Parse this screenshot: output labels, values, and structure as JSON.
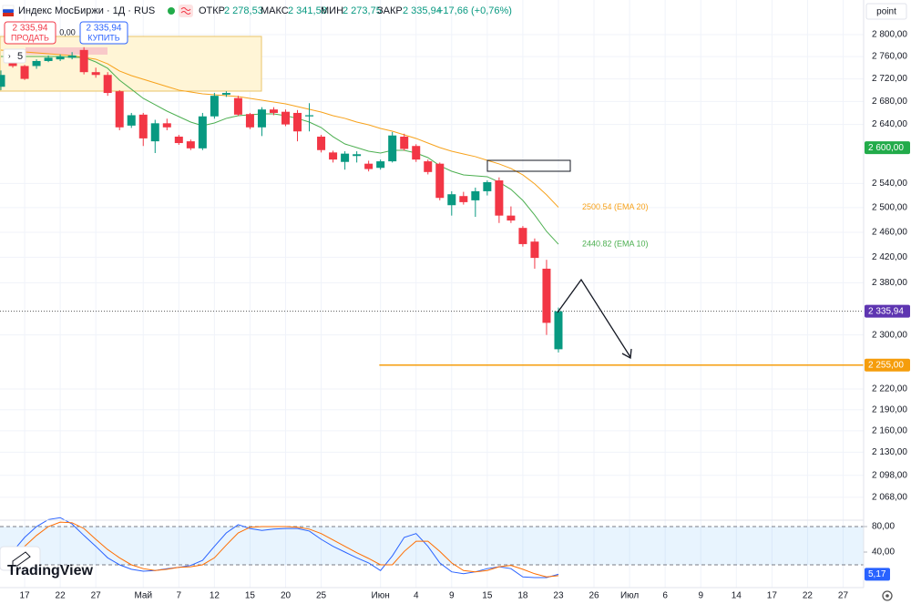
{
  "toolbar": {
    "symbol": "Индекс МосБиржи · 1Д · RUS",
    "open_label": "ОТКР",
    "open": "2 278,53",
    "high_label": "МАКС",
    "high": "2 341,58",
    "low_label": "МИН",
    "low": "2 273,75",
    "close_label": "ЗАКР",
    "close": "2 335,94",
    "change": "+17,66 (+0,76%)",
    "sell_price": "2 335,94",
    "sell": "ПРОДАТЬ",
    "spread": "0,00",
    "buy_price": "2 335,94",
    "buy": "КУПИТЬ",
    "indicator_count": "5",
    "scale_mode": "point",
    "logo": "TradingView"
  },
  "chart_data": [
    {
      "type": "candlestick",
      "log_scale": true,
      "grid": true,
      "up_color": "#089981",
      "down_color": "#f23645",
      "x": [
        0,
        1,
        2,
        3,
        4,
        5,
        6,
        7,
        8,
        9,
        10,
        11,
        12,
        13,
        14,
        15,
        16,
        17,
        18,
        19,
        20,
        21,
        22,
        23,
        24,
        25,
        26,
        27,
        28,
        29,
        30,
        31,
        32,
        33,
        34,
        35,
        36,
        37,
        38,
        39,
        40,
        41,
        42,
        43,
        44,
        45,
        46,
        47
      ],
      "open": [
        2706,
        2752,
        2743,
        2743,
        2752,
        2755,
        2758,
        2772,
        2732,
        2727,
        2698,
        2638,
        2657,
        2611,
        2642,
        2619,
        2611,
        2599,
        2654,
        2692,
        2686,
        2658,
        2635,
        2666,
        2662,
        2660,
        2654,
        2619,
        2592,
        2576,
        2586,
        2573,
        2566,
        2577,
        2619,
        2603,
        2577,
        2573,
        2504,
        2519,
        2512,
        2527,
        2545,
        2487,
        2467,
        2445,
        2402,
        2278.53
      ],
      "high": [
        2735,
        2755,
        2745,
        2755,
        2762,
        2764,
        2768,
        2777,
        2740,
        2732,
        2700,
        2660,
        2660,
        2648,
        2650,
        2622,
        2614,
        2660,
        2695,
        2698,
        2690,
        2660,
        2670,
        2670,
        2666,
        2665,
        2677,
        2622,
        2595,
        2594,
        2594,
        2578,
        2580,
        2627,
        2624,
        2606,
        2580,
        2575,
        2527,
        2526,
        2533,
        2545,
        2550,
        2502,
        2470,
        2450,
        2416,
        2341.58
      ],
      "low": [
        2700,
        2740,
        2718,
        2738,
        2750,
        2752,
        2755,
        2728,
        2722,
        2690,
        2630,
        2634,
        2603,
        2591,
        2630,
        2605,
        2596,
        2596,
        2650,
        2688,
        2655,
        2632,
        2620,
        2656,
        2637,
        2611,
        2628,
        2592,
        2575,
        2563,
        2575,
        2560,
        2563,
        2575,
        2595,
        2576,
        2555,
        2512,
        2487,
        2505,
        2485,
        2520,
        2475,
        2475,
        2437,
        2402,
        2300,
        2273.75
      ],
      "close": [
        2727,
        2743,
        2720,
        2752,
        2758,
        2760,
        2762,
        2732,
        2727,
        2695,
        2635,
        2656,
        2616,
        2642,
        2635,
        2608,
        2599,
        2654,
        2690,
        2695,
        2657,
        2635,
        2666,
        2660,
        2640,
        2628,
        2656,
        2596,
        2580,
        2590,
        2589,
        2564,
        2577,
        2621,
        2598,
        2580,
        2559,
        2516,
        2522,
        2509,
        2527,
        2542,
        2487,
        2479,
        2441,
        2419,
        2318.28,
        2335.94
      ],
      "close_labels": [
        null,
        null,
        null,
        null,
        null,
        null,
        null,
        null,
        null,
        null,
        null,
        null,
        null,
        null,
        null,
        null,
        null,
        null,
        null,
        null,
        null,
        null,
        null,
        null,
        null,
        null,
        null,
        null,
        null,
        null,
        null,
        null,
        null,
        null,
        null,
        null,
        null,
        null,
        null,
        null,
        null,
        null,
        null,
        null,
        null,
        null,
        null,
        "2 335,94"
      ],
      "last_price_color": "#5e35b1",
      "series": [
        {
          "color": "#f7a21b",
          "values": [
            2771.8,
            2770.1,
            2768.4,
            2766.8,
            2765.1,
            2763.5,
            2761.8,
            2758.5,
            2755.3,
            2747.0,
            2734.0,
            2725.8,
            2719.3,
            2712.8,
            2706.4,
            2700.0,
            2696.7,
            2693.5,
            2691.9,
            2690.3,
            2688.7,
            2685.5,
            2682.3,
            2679.1,
            2675.9,
            2671.1,
            2666.3,
            2661.5,
            2655.2,
            2650.5,
            2644.1,
            2639.4,
            2633.1,
            2628.3,
            2622.1,
            2615.9,
            2608.1,
            2600.3,
            2594.1,
            2589.5,
            2584.9,
            2578.7,
            2572.6,
            2564.9,
            2554.2,
            2539.1,
            2521.0,
            2500.54
          ],
          "value_labels": [
            null,
            null,
            null,
            null,
            null,
            null,
            null,
            null,
            null,
            null,
            null,
            null,
            null,
            null,
            null,
            null,
            null,
            null,
            null,
            null,
            null,
            null,
            null,
            null,
            null,
            null,
            null,
            null,
            null,
            null,
            null,
            null,
            null,
            null,
            null,
            null,
            null,
            null,
            null,
            null,
            null,
            null,
            null,
            null,
            null,
            null,
            null,
            "2500.54 (EMA 20)"
          ]
        },
        {
          "color": "#4caf50",
          "values": [
            2760.1,
            2760.1,
            2760.1,
            2760.1,
            2760.1,
            2760.1,
            2758.5,
            2758.5,
            2750.3,
            2738.9,
            2717.7,
            2701.6,
            2685.5,
            2674.3,
            2663.1,
            2653.6,
            2644.1,
            2637.8,
            2642.5,
            2650.5,
            2655.2,
            2656.8,
            2658.3,
            2658.3,
            2655.2,
            2650.5,
            2644.1,
            2634.6,
            2618.9,
            2606.5,
            2600.3,
            2594.1,
            2591.0,
            2595.7,
            2595.7,
            2591.0,
            2583.3,
            2569.5,
            2560.3,
            2554.2,
            2552.7,
            2551.2,
            2542.1,
            2530.0,
            2511.8,
            2487.9,
            2461.4,
            2440.82
          ],
          "value_labels": [
            null,
            null,
            null,
            null,
            null,
            null,
            null,
            null,
            null,
            null,
            null,
            null,
            null,
            null,
            null,
            null,
            null,
            null,
            null,
            null,
            null,
            null,
            null,
            null,
            null,
            null,
            null,
            null,
            null,
            null,
            null,
            null,
            null,
            null,
            null,
            null,
            null,
            null,
            null,
            null,
            null,
            null,
            null,
            null,
            null,
            null,
            null,
            "2440.82 (EMA 10)"
          ]
        }
      ],
      "levels": [
        {
          "value": 2600,
          "label": "2 600,00",
          "color": "#22ab4a",
          "line": false
        },
        {
          "value": 2255,
          "label": "2 255,00",
          "color": "#f59d0c",
          "line": true,
          "x_start": 31.9
        }
      ],
      "xlim": [
        -0.077,
        72.73
      ],
      "xticks": [
        {
          "value": 2,
          "label": "17"
        },
        {
          "value": 5,
          "label": "22"
        },
        {
          "value": 8,
          "label": "27"
        },
        {
          "value": 12,
          "label": "Май"
        },
        {
          "value": 15,
          "label": "7"
        },
        {
          "value": 18,
          "label": "12"
        },
        {
          "value": 21,
          "label": "15"
        },
        {
          "value": 24,
          "label": "20"
        },
        {
          "value": 27,
          "label": "25"
        },
        {
          "value": 32,
          "label": "Июн"
        },
        {
          "value": 35,
          "label": "4"
        },
        {
          "value": 38,
          "label": "9"
        },
        {
          "value": 41,
          "label": "15"
        },
        {
          "value": 44,
          "label": "18"
        },
        {
          "value": 47,
          "label": "23"
        },
        {
          "value": 50,
          "label": "26"
        },
        {
          "value": 53,
          "label": "Июл"
        },
        {
          "value": 56,
          "label": "6"
        },
        {
          "value": 59,
          "label": "9"
        },
        {
          "value": 62,
          "label": "14"
        },
        {
          "value": 65,
          "label": "17"
        },
        {
          "value": 68,
          "label": "22"
        },
        {
          "value": 71,
          "label": "27"
        }
      ],
      "ylim": [
        2050.6,
        2864.2
      ],
      "yticks": [
        {
          "value": 2800,
          "label": "2 800,00"
        },
        {
          "value": 2760,
          "label": "2 760,00"
        },
        {
          "value": 2720,
          "label": "2 720,00"
        },
        {
          "value": 2680,
          "label": "2 680,00"
        },
        {
          "value": 2640,
          "label": "2 640,00"
        },
        {
          "value": 2540,
          "label": "2 540,00"
        },
        {
          "value": 2500,
          "label": "2 500,00"
        },
        {
          "value": 2460,
          "label": "2 460,00"
        },
        {
          "value": 2420,
          "label": "2 420,00"
        },
        {
          "value": 2380,
          "label": "2 380,00"
        },
        {
          "value": 2300,
          "label": "2 300,00"
        },
        {
          "value": 2220,
          "label": "2 220,00"
        },
        {
          "value": 2190,
          "label": "2 190,00"
        },
        {
          "value": 2160,
          "label": "2 160,00"
        },
        {
          "value": 2130,
          "label": "2 130,00"
        },
        {
          "value": 2098,
          "label": "2 098,00"
        },
        {
          "value": 2068,
          "label": "2 068,00"
        }
      ]
    },
    {
      "type": "line",
      "x": [
        0,
        1,
        2,
        3,
        4,
        5,
        6,
        7,
        8,
        9,
        10,
        11,
        12,
        13,
        14,
        15,
        16,
        17,
        18,
        19,
        20,
        21,
        22,
        23,
        24,
        25,
        26,
        27,
        28,
        29,
        30,
        31,
        32,
        33,
        34,
        35,
        36,
        37,
        38,
        39,
        40,
        41,
        42,
        43,
        44,
        45,
        46,
        47
      ],
      "series": [
        {
          "color": "#2962ff",
          "values": [
            20,
            41,
            63,
            80,
            91,
            94,
            84,
            66,
            49,
            31,
            20,
            13,
            10,
            11,
            14,
            16,
            19,
            27,
            49,
            70,
            83,
            77,
            74,
            76,
            77,
            77,
            73,
            60,
            49,
            40,
            31,
            23,
            11,
            34,
            63,
            69,
            49,
            23,
            9,
            6,
            9,
            14,
            17,
            14,
            1,
            0,
            0,
            5.17
          ],
          "value_labels": [
            null,
            null,
            null,
            null,
            null,
            null,
            null,
            null,
            null,
            null,
            null,
            null,
            null,
            null,
            null,
            null,
            null,
            null,
            null,
            null,
            null,
            null,
            null,
            null,
            null,
            null,
            null,
            null,
            null,
            null,
            null,
            null,
            null,
            null,
            null,
            null,
            null,
            null,
            null,
            null,
            null,
            null,
            null,
            null,
            null,
            null,
            null,
            "5,17"
          ]
        },
        {
          "color": "#ff6d00",
          "values": [
            13,
            27,
            49,
            66,
            80,
            87,
            86,
            77,
            60,
            44,
            31,
            20,
            14,
            11,
            13,
            16,
            17,
            20,
            31,
            51,
            70,
            79,
            80,
            80,
            80,
            79,
            76,
            69,
            59,
            49,
            39,
            30,
            20,
            20,
            41,
            57,
            57,
            41,
            23,
            11,
            9,
            11,
            17,
            19,
            13,
            6,
            1,
            3
          ]
        }
      ],
      "bands": [
        80,
        20
      ],
      "band_color": "#2196f3",
      "xlim": [
        -0.077,
        72.73
      ],
      "ylim": [
        -8.6,
        84.3
      ],
      "yticks": [
        {
          "value": 80,
          "label": "80,00"
        },
        {
          "value": 40,
          "label": "40,00"
        }
      ]
    }
  ]
}
